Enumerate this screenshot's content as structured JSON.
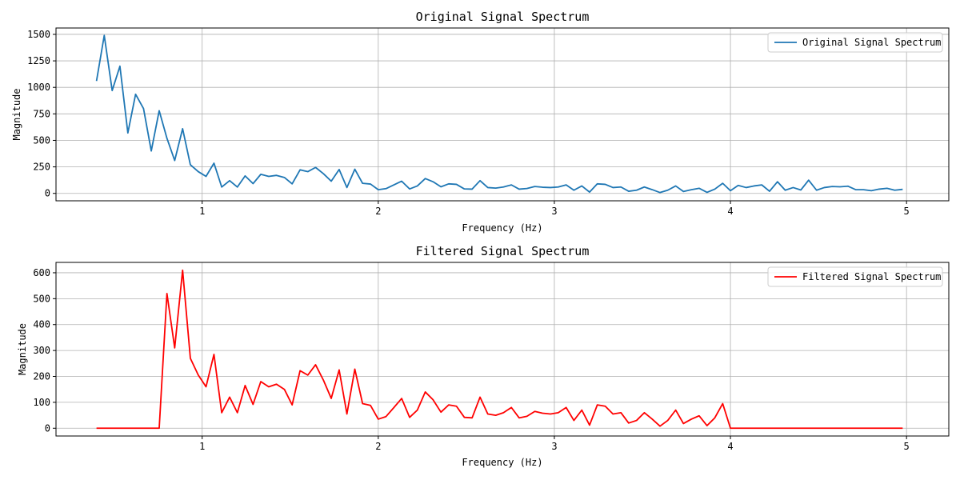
{
  "chart_data": [
    {
      "type": "line",
      "title": "Original Signal Spectrum",
      "xlabel": "Frequency (Hz)",
      "ylabel": "Magnitude",
      "xlim": [
        0.17,
        5.24
      ],
      "ylim": [
        -70,
        1560
      ],
      "xticks": [
        1,
        2,
        3,
        4,
        5
      ],
      "yticks": [
        0,
        250,
        500,
        750,
        1000,
        1250,
        1500
      ],
      "grid": true,
      "legend": "top-right",
      "series": [
        {
          "name": "Original Signal Spectrum",
          "color": "#1f77b4",
          "x": [
            0.4,
            0.444,
            0.489,
            0.533,
            0.578,
            0.622,
            0.667,
            0.711,
            0.756,
            0.8,
            0.844,
            0.889,
            0.933,
            0.978,
            1.022,
            1.067,
            1.111,
            1.156,
            1.2,
            1.244,
            1.289,
            1.333,
            1.378,
            1.422,
            1.467,
            1.511,
            1.556,
            1.6,
            1.644,
            1.689,
            1.733,
            1.778,
            1.822,
            1.867,
            1.911,
            1.956,
            2.0,
            2.044,
            2.089,
            2.133,
            2.178,
            2.222,
            2.267,
            2.311,
            2.356,
            2.4,
            2.444,
            2.489,
            2.533,
            2.578,
            2.622,
            2.667,
            2.711,
            2.756,
            2.8,
            2.844,
            2.889,
            2.933,
            2.978,
            3.022,
            3.067,
            3.111,
            3.156,
            3.2,
            3.244,
            3.289,
            3.333,
            3.378,
            3.422,
            3.467,
            3.511,
            3.556,
            3.6,
            3.644,
            3.689,
            3.733,
            3.778,
            3.822,
            3.867,
            3.911,
            3.956,
            4.0,
            4.044,
            4.089,
            4.133,
            4.178,
            4.222,
            4.267,
            4.311,
            4.356,
            4.4,
            4.444,
            4.489,
            4.533,
            4.578,
            4.622,
            4.667,
            4.711,
            4.756,
            4.8,
            4.844,
            4.889,
            4.933,
            4.978
          ],
          "values": [
            1060,
            1490,
            970,
            1200,
            570,
            935,
            800,
            400,
            780,
            520,
            310,
            610,
            270,
            205,
            160,
            285,
            60,
            120,
            60,
            165,
            92,
            180,
            160,
            170,
            150,
            90,
            222,
            205,
            245,
            185,
            115,
            225,
            55,
            228,
            95,
            88,
            35,
            45,
            80,
            115,
            42,
            70,
            140,
            110,
            62,
            90,
            85,
            42,
            40,
            120,
            55,
            50,
            60,
            80,
            40,
            46,
            65,
            58,
            55,
            60,
            80,
            30,
            70,
            12,
            90,
            85,
            55,
            60,
            20,
            30,
            60,
            35,
            8,
            30,
            70,
            18,
            35,
            48,
            10,
            40,
            95,
            25,
            75,
            55,
            70,
            80,
            20,
            110,
            30,
            55,
            32,
            125,
            30,
            55,
            65,
            62,
            68,
            35,
            35,
            25,
            40,
            48,
            30,
            38
          ]
        }
      ]
    },
    {
      "type": "line",
      "title": "Filtered Signal Spectrum",
      "xlabel": "Frequency (Hz)",
      "ylabel": "Magnitude",
      "xlim": [
        0.17,
        5.24
      ],
      "ylim": [
        -30,
        640
      ],
      "xticks": [
        1,
        2,
        3,
        4,
        5
      ],
      "yticks": [
        0,
        100,
        200,
        300,
        400,
        500,
        600
      ],
      "grid": true,
      "legend": "top-right",
      "series": [
        {
          "name": "Filtered Signal Spectrum",
          "color": "#ff0000",
          "x": [
            0.4,
            0.444,
            0.489,
            0.533,
            0.578,
            0.622,
            0.667,
            0.711,
            0.756,
            0.8,
            0.844,
            0.889,
            0.933,
            0.978,
            1.022,
            1.067,
            1.111,
            1.156,
            1.2,
            1.244,
            1.289,
            1.333,
            1.378,
            1.422,
            1.467,
            1.511,
            1.556,
            1.6,
            1.644,
            1.689,
            1.733,
            1.778,
            1.822,
            1.867,
            1.911,
            1.956,
            2.0,
            2.044,
            2.089,
            2.133,
            2.178,
            2.222,
            2.267,
            2.311,
            2.356,
            2.4,
            2.444,
            2.489,
            2.533,
            2.578,
            2.622,
            2.667,
            2.711,
            2.756,
            2.8,
            2.844,
            2.889,
            2.933,
            2.978,
            3.022,
            3.067,
            3.111,
            3.156,
            3.2,
            3.244,
            3.289,
            3.333,
            3.378,
            3.422,
            3.467,
            3.511,
            3.556,
            3.6,
            3.644,
            3.689,
            3.733,
            3.778,
            3.822,
            3.867,
            3.911,
            3.956,
            4.0,
            4.044,
            4.089,
            4.133,
            4.178,
            4.222,
            4.267,
            4.311,
            4.356,
            4.4,
            4.444,
            4.489,
            4.533,
            4.578,
            4.622,
            4.667,
            4.711,
            4.756,
            4.8,
            4.844,
            4.889,
            4.933,
            4.978
          ],
          "values": [
            0,
            0,
            0,
            0,
            0,
            0,
            0,
            0,
            0,
            520,
            310,
            610,
            270,
            205,
            160,
            285,
            60,
            120,
            60,
            165,
            92,
            180,
            160,
            170,
            150,
            90,
            222,
            205,
            245,
            185,
            115,
            225,
            55,
            228,
            95,
            88,
            35,
            45,
            80,
            115,
            42,
            70,
            140,
            110,
            62,
            90,
            85,
            42,
            40,
            120,
            55,
            50,
            60,
            80,
            40,
            46,
            65,
            58,
            55,
            60,
            80,
            30,
            70,
            12,
            90,
            85,
            55,
            60,
            20,
            30,
            60,
            35,
            8,
            30,
            70,
            18,
            35,
            48,
            10,
            40,
            95,
            0,
            0,
            0,
            0,
            0,
            0,
            0,
            0,
            0,
            0,
            0,
            0,
            0,
            0,
            0,
            0,
            0,
            0,
            0,
            0,
            0,
            0,
            0
          ]
        }
      ]
    }
  ]
}
